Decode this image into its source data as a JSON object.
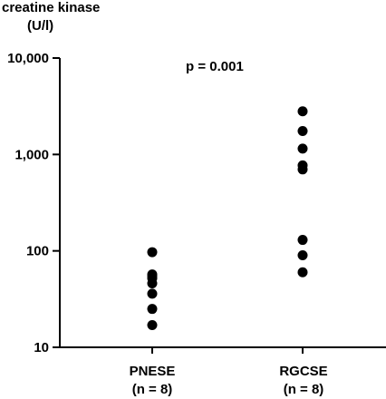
{
  "chart_data": {
    "type": "scatter",
    "ylabel": [
      "creatine kinase",
      "(U/l)"
    ],
    "yscale": "log",
    "ylim": [
      10,
      10000
    ],
    "yticks": [
      10,
      100,
      1000,
      10000
    ],
    "ytick_labels": [
      "10",
      "100",
      "1,000",
      "10,000"
    ],
    "annotation": "p = 0.001",
    "categories": [
      {
        "name": "PNESE",
        "n_label": "(n = 8)"
      },
      {
        "name": "RGCSE",
        "n_label": "(n = 8)"
      }
    ],
    "series": [
      {
        "category": "PNESE",
        "values": [
          97,
          57,
          52,
          46,
          36,
          25,
          17,
          55
        ]
      },
      {
        "category": "RGCSE",
        "values": [
          2800,
          1750,
          1150,
          770,
          700,
          130,
          90,
          60
        ]
      }
    ],
    "marker_color": "#000000"
  }
}
